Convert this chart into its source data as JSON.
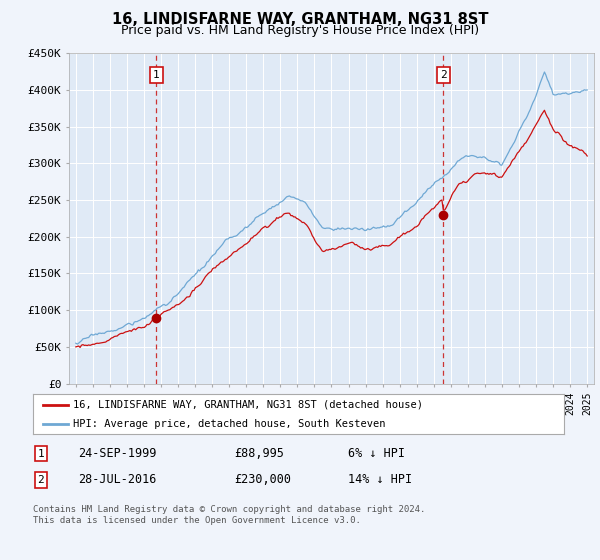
{
  "title": "16, LINDISFARNE WAY, GRANTHAM, NG31 8ST",
  "subtitle": "Price paid vs. HM Land Registry's House Price Index (HPI)",
  "ylim": [
    0,
    450000
  ],
  "yticks": [
    0,
    50000,
    100000,
    150000,
    200000,
    250000,
    300000,
    350000,
    400000,
    450000
  ],
  "ytick_labels": [
    "£0",
    "£50K",
    "£100K",
    "£150K",
    "£200K",
    "£250K",
    "£300K",
    "£350K",
    "£400K",
    "£450K"
  ],
  "hpi_color": "#6fa8d4",
  "price_color": "#cc1111",
  "marker_color": "#aa0000",
  "vline_color": "#cc3333",
  "annotation_box_edge": "#cc1111",
  "bg_color": "#f0f4fb",
  "plot_bg": "#e0eaf6",
  "sale1_date_num": 1999.73,
  "sale1_price": 88995,
  "sale2_date_num": 2016.57,
  "sale2_price": 230000,
  "legend_line1": "16, LINDISFARNE WAY, GRANTHAM, NG31 8ST (detached house)",
  "legend_line2": "HPI: Average price, detached house, South Kesteven",
  "table_row1": [
    "1",
    "24-SEP-1999",
    "£88,995",
    "6% ↓ HPI"
  ],
  "table_row2": [
    "2",
    "28-JUL-2016",
    "£230,000",
    "14% ↓ HPI"
  ],
  "footer": "Contains HM Land Registry data © Crown copyright and database right 2024.\nThis data is licensed under the Open Government Licence v3.0."
}
